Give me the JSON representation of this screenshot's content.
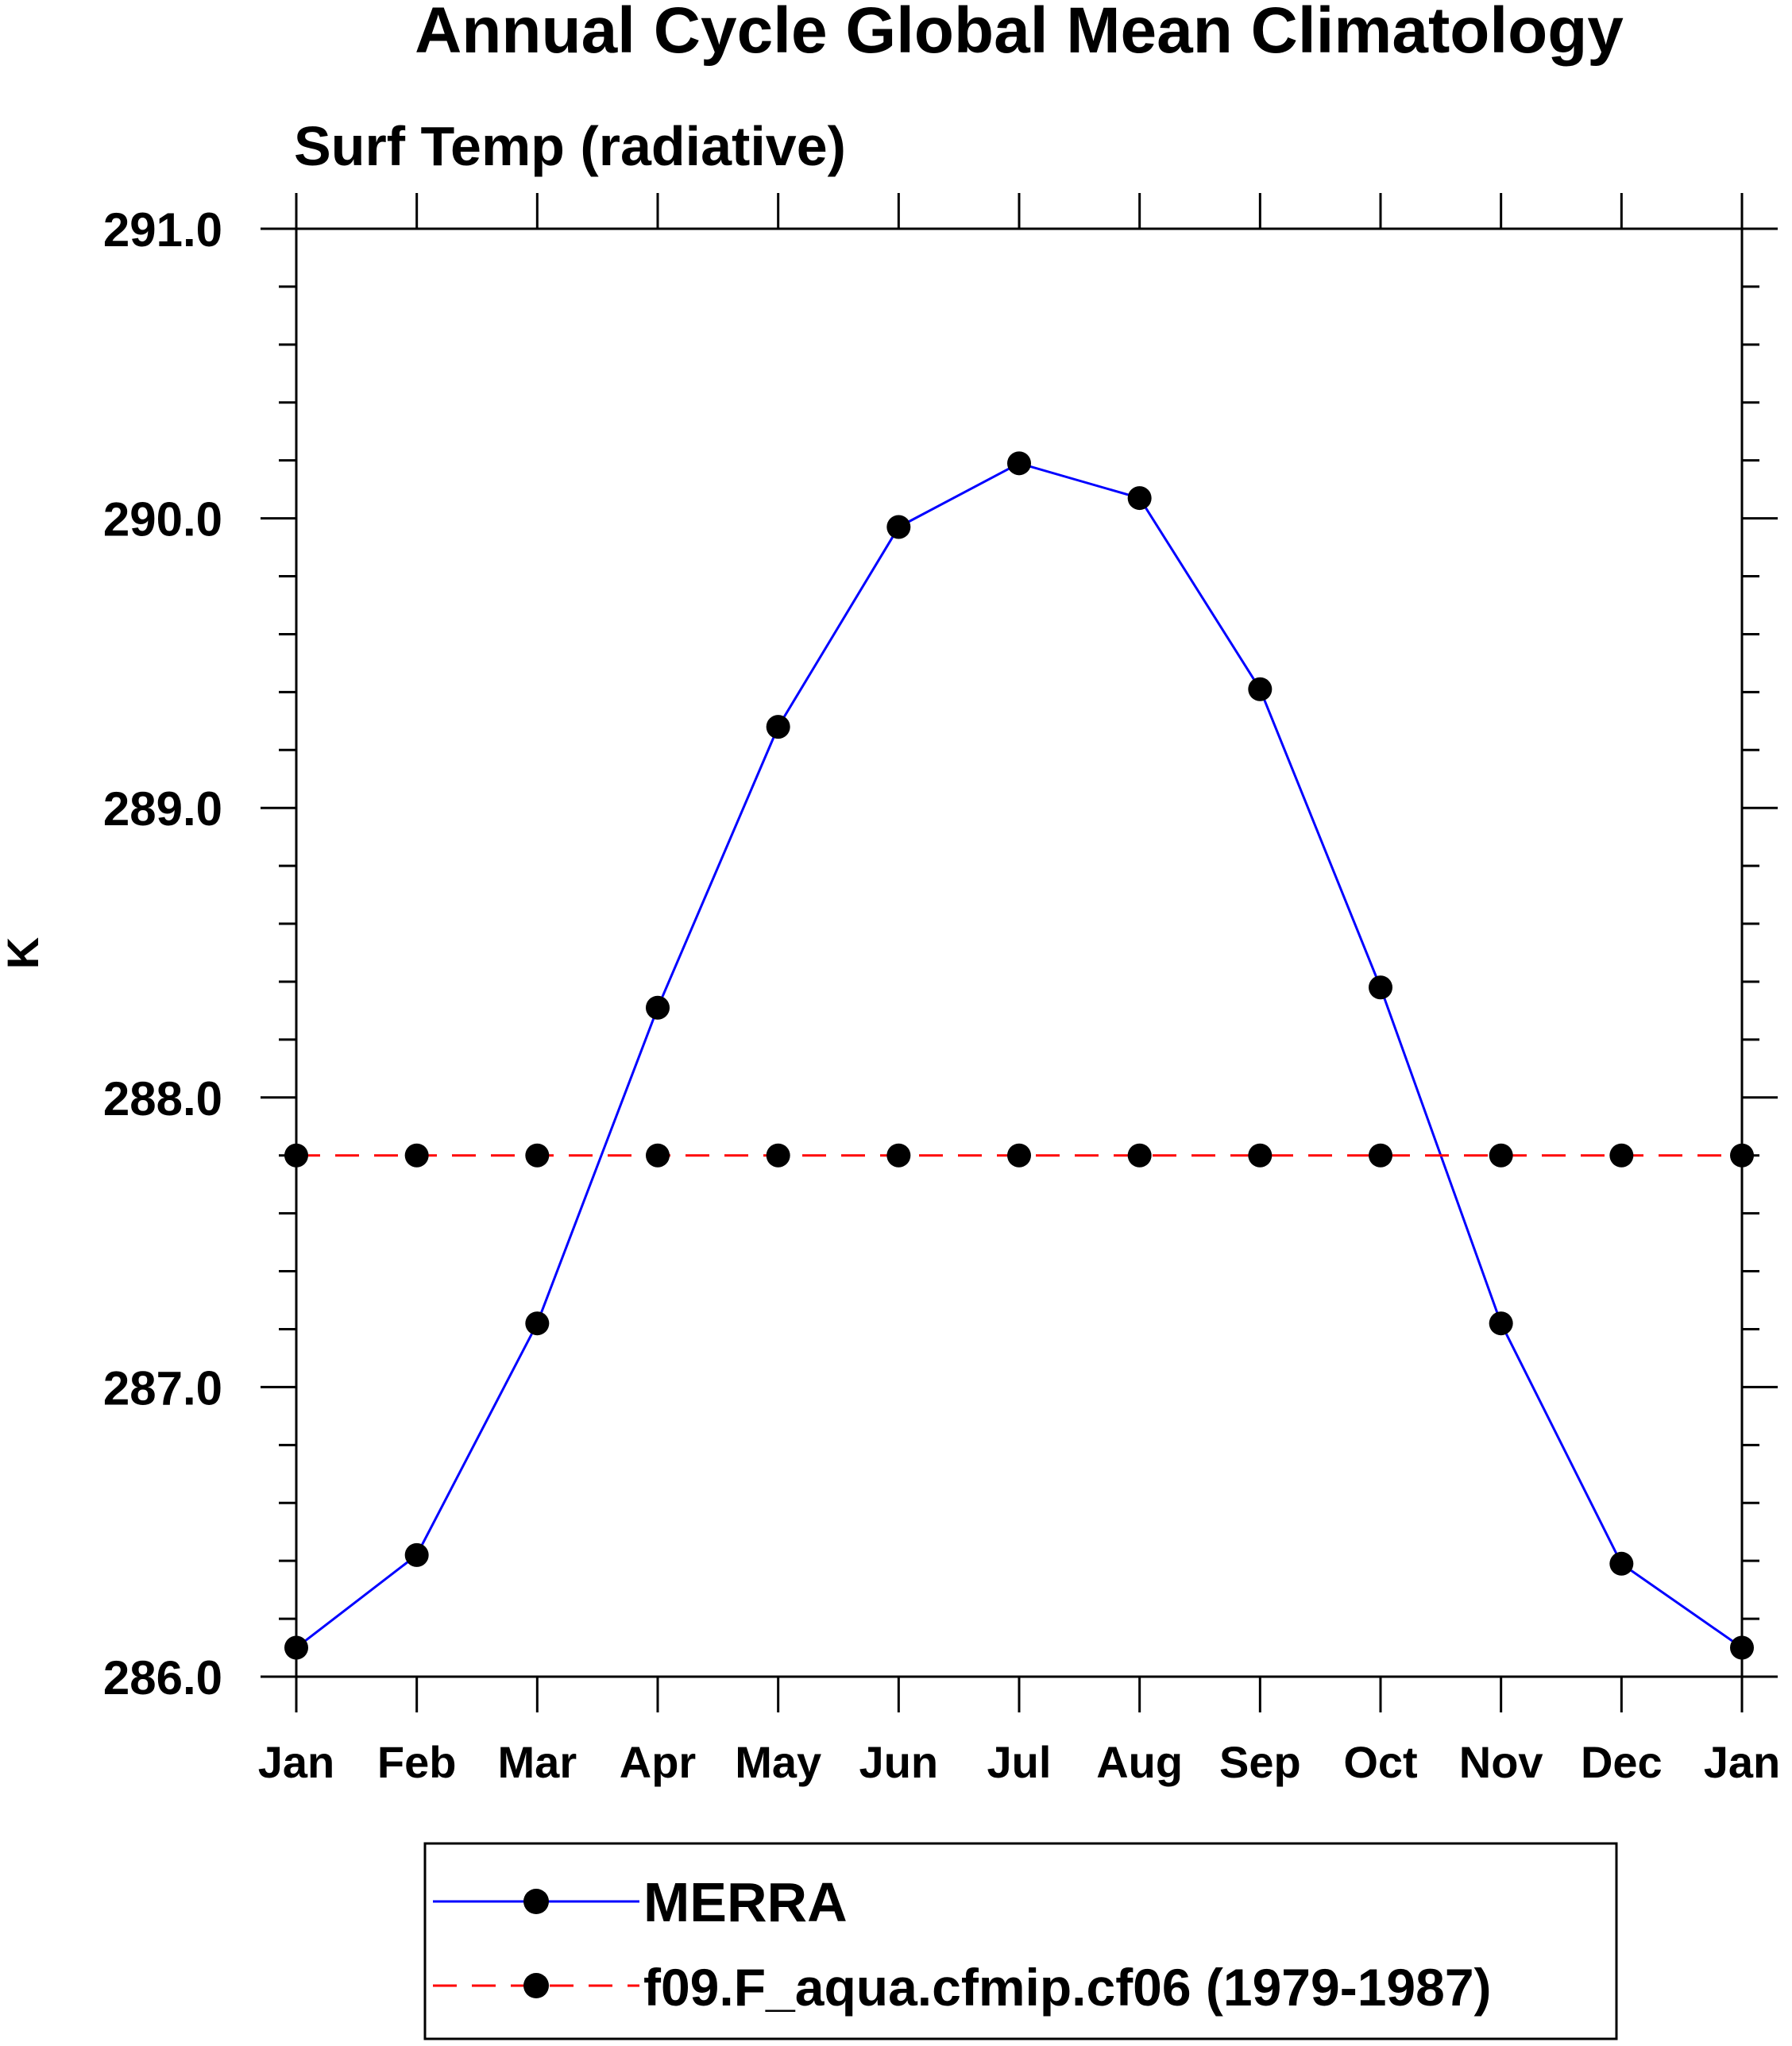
{
  "chart_data": {
    "type": "line",
    "title": "Annual Cycle Global Mean Climatology",
    "subtitle": "Surf Temp (radiative)",
    "xlabel": "",
    "ylabel": "K",
    "categories": [
      "Jan",
      "Feb",
      "Mar",
      "Apr",
      "May",
      "Jun",
      "Jul",
      "Aug",
      "Sep",
      "Oct",
      "Nov",
      "Dec",
      "Jan"
    ],
    "ylim": [
      286.0,
      291.0
    ],
    "yticks": [
      286.0,
      287.0,
      288.0,
      289.0,
      290.0,
      291.0
    ],
    "ytick_labels": [
      "286.0",
      "287.0",
      "288.0",
      "289.0",
      "290.0",
      "291.0"
    ],
    "grid": false,
    "legend_position": "bottom",
    "series": [
      {
        "name": "MERRA",
        "color": "#0000ff",
        "line_style": "solid",
        "marker": "filled-circle",
        "values": [
          286.1,
          286.42,
          287.22,
          288.31,
          289.28,
          289.97,
          290.19,
          290.07,
          289.41,
          288.38,
          287.22,
          286.39,
          286.1
        ]
      },
      {
        "name": "f09.F_aqua.cfmip.cf06 (1979-1987)",
        "color": "#ff0000",
        "line_style": "dashed",
        "marker": "filled-circle",
        "values": [
          287.8,
          287.8,
          287.8,
          287.8,
          287.8,
          287.8,
          287.8,
          287.8,
          287.8,
          287.8,
          287.8,
          287.8,
          287.8
        ]
      }
    ]
  }
}
